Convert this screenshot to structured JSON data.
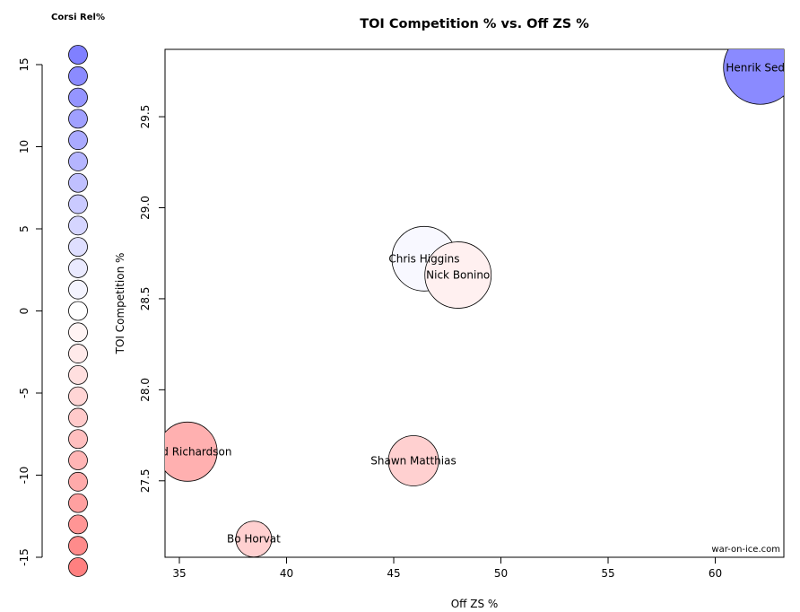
{
  "chart_data": {
    "type": "scatter",
    "title": "TOI Competition % vs. Off ZS %",
    "xlabel": "Off ZS %",
    "ylabel": "TOI Competition %",
    "xlim": [
      34.33,
      63.2
    ],
    "ylim": [
      27.08,
      29.87
    ],
    "xticks": [
      35,
      40,
      45,
      50,
      55,
      60
    ],
    "yticks": [
      27.5,
      28.0,
      28.5,
      29.0,
      29.5
    ],
    "xtick_labels": [
      "35",
      "40",
      "45",
      "50",
      "55",
      "60"
    ],
    "ytick_labels": [
      "27.5",
      "28.0",
      "28.5",
      "29.0",
      "29.5"
    ],
    "watermark": "war-on-ice.com",
    "points": [
      {
        "label": "Henrik Sedin",
        "x": 62.1,
        "y": 29.77,
        "size": 41,
        "corsi_rel": 14.5,
        "color": "#8a8aff"
      },
      {
        "label": "Chris Higgins",
        "x": 46.42,
        "y": 28.72,
        "size": 36,
        "corsi_rel": 0.8,
        "color": "#f8f8ff"
      },
      {
        "label": "Nick Bonino",
        "x": 48.0,
        "y": 28.63,
        "size": 37,
        "corsi_rel": -1.5,
        "color": "#fff0f0"
      },
      {
        "label": "Brad Richardson",
        "x": 35.38,
        "y": 27.66,
        "size": 33,
        "corsi_rel": -9.5,
        "color": "#ffb0b0"
      },
      {
        "label": "Shawn Matthias",
        "x": 45.92,
        "y": 27.61,
        "size": 28,
        "corsi_rel": -5.5,
        "color": "#ffd0d0"
      },
      {
        "label": "Bo Horvat",
        "x": 38.47,
        "y": 27.18,
        "size": 20,
        "corsi_rel": -5.5,
        "color": "#ffd0d0"
      }
    ],
    "legend": {
      "title": "Corsi Rel%",
      "placement": "left",
      "ticks": [
        15,
        10,
        5,
        0,
        -5,
        -10,
        -15
      ],
      "tick_labels": [
        "15",
        "10",
        "5",
        "0",
        "-5",
        "-10",
        "-15"
      ],
      "range": [
        -15.6,
        15.6
      ],
      "swatch_count": 25,
      "high_color": "#8080ff",
      "mid_color": "#ffffff",
      "low_color": "#ff8080"
    }
  }
}
